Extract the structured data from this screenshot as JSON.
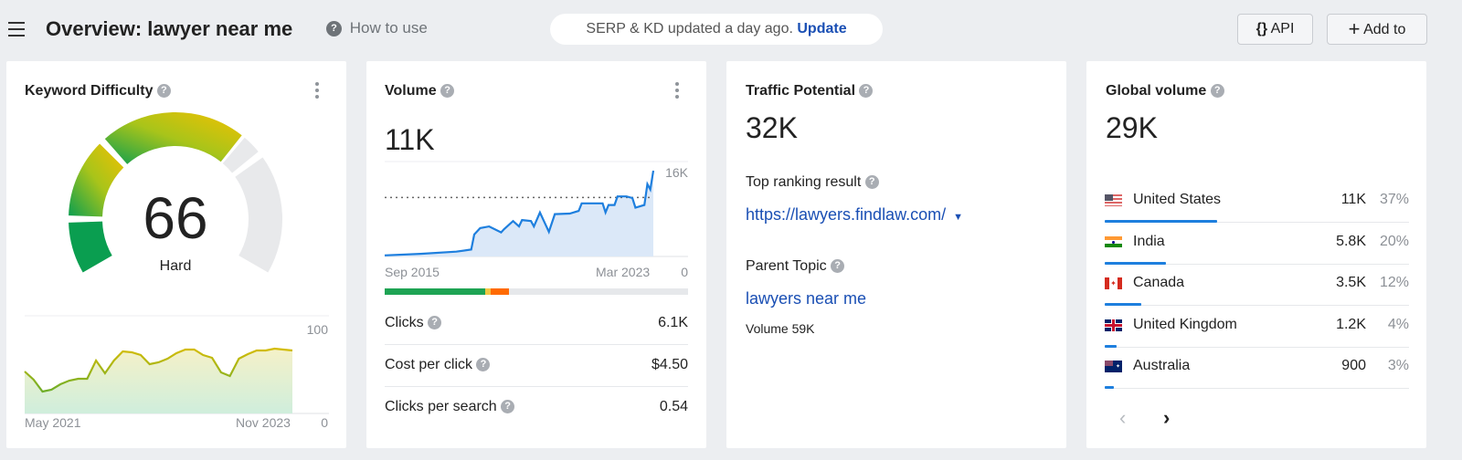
{
  "header": {
    "title": "Overview: lawyer near me",
    "how_to_use": "How to use",
    "update_notice": "SERP & KD updated a day ago.",
    "update_link": "Update",
    "api_button": "API",
    "add_button": "Add to"
  },
  "keyword_difficulty": {
    "title": "Keyword Difficulty",
    "score": "66",
    "score_value": 66,
    "label": "Hard",
    "trend": {
      "type": "area",
      "x_start": "May 2021",
      "x_end": "Nov 2023",
      "y_max_label": "100",
      "y_min_label": "0",
      "ylim": [
        0,
        100
      ],
      "values": [
        46,
        37,
        24,
        26,
        32,
        36,
        38,
        38,
        58,
        44,
        58,
        68,
        67,
        64,
        54,
        56,
        60,
        66,
        70,
        70,
        64,
        61,
        45,
        41,
        60,
        65,
        69,
        69,
        71,
        70,
        69
      ]
    }
  },
  "volume": {
    "title": "Volume",
    "value": "11K",
    "chart": {
      "type": "area",
      "x_start": "Sep 2015",
      "x_end": "Mar 2023",
      "y_max_label": "16K",
      "y_min_label": "0",
      "ylim": [
        0,
        16000
      ],
      "average": 11000,
      "points": [
        [
          "2015-09",
          200
        ],
        [
          "2016-09",
          500
        ],
        [
          "2017-09",
          900
        ],
        [
          "2018-02",
          1300
        ],
        [
          "2018-03",
          4100
        ],
        [
          "2018-05",
          5300
        ],
        [
          "2018-08",
          5600
        ],
        [
          "2018-12",
          4500
        ],
        [
          "2019-01",
          5100
        ],
        [
          "2019-04",
          6600
        ],
        [
          "2019-06",
          5600
        ],
        [
          "2019-07",
          6800
        ],
        [
          "2019-10",
          6600
        ],
        [
          "2019-11",
          5600
        ],
        [
          "2020-01",
          8200
        ],
        [
          "2020-04",
          4600
        ],
        [
          "2020-06",
          7900
        ],
        [
          "2020-11",
          8000
        ],
        [
          "2021-02",
          8500
        ],
        [
          "2021-03",
          9900
        ],
        [
          "2021-10",
          9900
        ],
        [
          "2021-11",
          8200
        ],
        [
          "2021-12",
          9600
        ],
        [
          "2022-02",
          9600
        ],
        [
          "2022-03",
          11200
        ],
        [
          "2022-06",
          11200
        ],
        [
          "2022-08",
          10900
        ],
        [
          "2022-09",
          9100
        ],
        [
          "2022-12",
          9600
        ],
        [
          "2023-01",
          13500
        ],
        [
          "2023-02",
          12500
        ],
        [
          "2023-03",
          16000
        ]
      ]
    },
    "split_bar": [
      {
        "fraction": 0.33,
        "color": "#1ea354"
      },
      {
        "fraction": 0.02,
        "color": "#f2c744"
      },
      {
        "fraction": 0.06,
        "color": "#ff6a00"
      }
    ],
    "metrics": [
      {
        "label": "Clicks",
        "value": "6.1K"
      },
      {
        "label": "Cost per click",
        "value": "$4.50"
      },
      {
        "label": "Clicks per search",
        "value": "0.54"
      }
    ]
  },
  "traffic_potential": {
    "title": "Traffic Potential",
    "value": "32K",
    "top_ranking_label": "Top ranking result",
    "top_ranking_url": "https://lawyers.findlaw.com/",
    "parent_topic_label": "Parent Topic",
    "parent_topic": "lawyers near me",
    "parent_volume": "Volume 59K"
  },
  "global_volume": {
    "title": "Global volume",
    "value": "29K",
    "countries": [
      {
        "name": "United States",
        "volume": "11K",
        "share": "37%",
        "share_value": 37,
        "flag": "us"
      },
      {
        "name": "India",
        "volume": "5.8K",
        "share": "20%",
        "share_value": 20,
        "flag": "in"
      },
      {
        "name": "Canada",
        "volume": "3.5K",
        "share": "12%",
        "share_value": 12,
        "flag": "ca"
      },
      {
        "name": "United Kingdom",
        "volume": "1.2K",
        "share": "4%",
        "share_value": 4,
        "flag": "gb"
      },
      {
        "name": "Australia",
        "volume": "900",
        "share": "3%",
        "share_value": 3,
        "flag": "au"
      }
    ]
  },
  "colors": {
    "accent": "#1e7fde",
    "link": "#1a4fb4",
    "kd_green": "#0a9e50",
    "kd_yellow": "#f2c100"
  }
}
